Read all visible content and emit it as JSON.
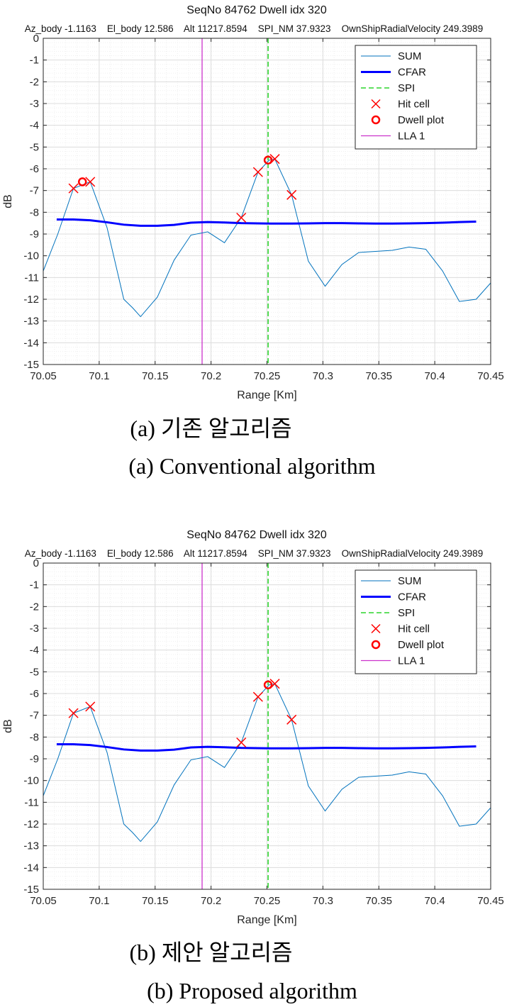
{
  "colors": {
    "sum": "#0072bd",
    "cfar": "#0000ff",
    "spi": "#00cc00",
    "marker": "#ff0000",
    "lla": "#cc33cc",
    "grid": "#e5e5e5",
    "axis": "#262626"
  },
  "chart_data": [
    {
      "type": "line",
      "title": "SeqNo 84762   Dwell idx 320",
      "subtitle": "Az_body -1.1163    El_body 12.586    Alt 11217.8594    SPI_NM 37.9323    OwnShipRadialVelocity 249.3989",
      "xlabel": "Range [Km]",
      "ylabel": "dB",
      "xlim": [
        70.05,
        70.45
      ],
      "ylim": [
        -15,
        0
      ],
      "xticks": [
        "70.05",
        "70.1",
        "70.15",
        "70.2",
        "70.25",
        "70.3",
        "70.35",
        "70.4",
        "70.45"
      ],
      "yticks": [
        "0",
        "-1",
        "-2",
        "-3",
        "-4",
        "-5",
        "-6",
        "-7",
        "-8",
        "-9",
        "-10",
        "-11",
        "-12",
        "-13",
        "-14",
        "-15"
      ],
      "grid": "on (major and minor)",
      "legend_position": "top-right",
      "legend": [
        "SUM",
        "CFAR",
        "SPI",
        "Hit cell",
        "Dwell plot",
        "LLA 1"
      ],
      "series": [
        {
          "name": "SUM",
          "style": "thin-line",
          "x": [
            70.05,
            70.063,
            70.077,
            70.092,
            70.107,
            70.122,
            70.13,
            70.137,
            70.152,
            70.167,
            70.182,
            70.197,
            70.212,
            70.227,
            70.242,
            70.252,
            70.257,
            70.272,
            70.287,
            70.302,
            70.317,
            70.332,
            70.347,
            70.362,
            70.377,
            70.392,
            70.407,
            70.422,
            70.437,
            70.45
          ],
          "y": [
            -10.7,
            -9.0,
            -6.9,
            -6.6,
            -8.7,
            -12.0,
            -12.4,
            -12.8,
            -11.9,
            -10.2,
            -9.05,
            -8.9,
            -9.4,
            -8.25,
            -6.15,
            -5.6,
            -5.55,
            -7.2,
            -10.25,
            -11.4,
            -10.4,
            -9.85,
            -9.8,
            -9.75,
            -9.6,
            -9.7,
            -10.7,
            -12.1,
            -12.0,
            -11.25
          ]
        },
        {
          "name": "CFAR",
          "style": "thick-line",
          "x": [
            70.062,
            70.077,
            70.092,
            70.107,
            70.122,
            70.137,
            70.152,
            70.167,
            70.182,
            70.197,
            70.212,
            70.227,
            70.242,
            70.257,
            70.272,
            70.287,
            70.302,
            70.317,
            70.332,
            70.347,
            70.362,
            70.377,
            70.392,
            70.407,
            70.422,
            70.437
          ],
          "y": [
            -8.33,
            -8.33,
            -8.37,
            -8.46,
            -8.57,
            -8.62,
            -8.62,
            -8.58,
            -8.48,
            -8.45,
            -8.47,
            -8.5,
            -8.51,
            -8.52,
            -8.52,
            -8.51,
            -8.5,
            -8.5,
            -8.51,
            -8.52,
            -8.52,
            -8.51,
            -8.5,
            -8.48,
            -8.45,
            -8.43
          ]
        },
        {
          "name": "SPI",
          "style": "dashed-vertical",
          "x": [
            70.251
          ]
        },
        {
          "name": "LLA 1",
          "style": "vertical",
          "x": [
            70.192
          ]
        },
        {
          "name": "Hit cell",
          "style": "x-marker",
          "x": [
            70.077,
            70.092,
            70.227,
            70.242,
            70.257,
            70.272
          ],
          "y": [
            -6.9,
            -6.6,
            -8.25,
            -6.15,
            -5.55,
            -7.2
          ]
        },
        {
          "name": "Dwell plot",
          "style": "circle-marker",
          "x": [
            70.085,
            70.251
          ],
          "y": [
            -6.6,
            -5.6
          ]
        }
      ]
    },
    {
      "type": "line",
      "title": "SeqNo 84762   Dwell idx 320",
      "subtitle": "Az_body -1.1163    El_body 12.586    Alt 11217.8594    SPI_NM 37.9323    OwnShipRadialVelocity 249.3989",
      "xlabel": "Range [Km]",
      "ylabel": "dB",
      "xlim": [
        70.05,
        70.45
      ],
      "ylim": [
        -15,
        0
      ],
      "xticks": [
        "70.05",
        "70.1",
        "70.15",
        "70.2",
        "70.25",
        "70.3",
        "70.35",
        "70.4",
        "70.45"
      ],
      "yticks": [
        "0",
        "-1",
        "-2",
        "-3",
        "-4",
        "-5",
        "-6",
        "-7",
        "-8",
        "-9",
        "-10",
        "-11",
        "-12",
        "-13",
        "-14",
        "-15"
      ],
      "grid": "on (major and minor)",
      "legend_position": "top-right",
      "legend": [
        "SUM",
        "CFAR",
        "SPI",
        "Hit cell",
        "Dwell plot",
        "LLA 1"
      ],
      "series": [
        {
          "name": "SUM",
          "style": "thin-line",
          "x": [
            70.05,
            70.063,
            70.077,
            70.092,
            70.107,
            70.122,
            70.13,
            70.137,
            70.152,
            70.167,
            70.182,
            70.197,
            70.212,
            70.227,
            70.242,
            70.252,
            70.257,
            70.272,
            70.287,
            70.302,
            70.317,
            70.332,
            70.347,
            70.362,
            70.377,
            70.392,
            70.407,
            70.422,
            70.437,
            70.45
          ],
          "y": [
            -10.7,
            -9.0,
            -6.9,
            -6.6,
            -8.7,
            -12.0,
            -12.4,
            -12.8,
            -11.9,
            -10.2,
            -9.05,
            -8.9,
            -9.4,
            -8.25,
            -6.15,
            -5.6,
            -5.55,
            -7.2,
            -10.25,
            -11.4,
            -10.4,
            -9.85,
            -9.8,
            -9.75,
            -9.6,
            -9.7,
            -10.7,
            -12.1,
            -12.0,
            -11.25
          ]
        },
        {
          "name": "CFAR",
          "style": "thick-line",
          "x": [
            70.062,
            70.077,
            70.092,
            70.107,
            70.122,
            70.137,
            70.152,
            70.167,
            70.182,
            70.197,
            70.212,
            70.227,
            70.242,
            70.257,
            70.272,
            70.287,
            70.302,
            70.317,
            70.332,
            70.347,
            70.362,
            70.377,
            70.392,
            70.407,
            70.422,
            70.437
          ],
          "y": [
            -8.33,
            -8.33,
            -8.37,
            -8.46,
            -8.57,
            -8.62,
            -8.62,
            -8.58,
            -8.48,
            -8.45,
            -8.47,
            -8.5,
            -8.51,
            -8.52,
            -8.52,
            -8.51,
            -8.5,
            -8.5,
            -8.51,
            -8.52,
            -8.52,
            -8.51,
            -8.5,
            -8.48,
            -8.45,
            -8.43
          ]
        },
        {
          "name": "SPI",
          "style": "dashed-vertical",
          "x": [
            70.251
          ]
        },
        {
          "name": "LLA 1",
          "style": "vertical",
          "x": [
            70.192
          ]
        },
        {
          "name": "Hit cell",
          "style": "x-marker",
          "x": [
            70.077,
            70.092,
            70.227,
            70.242,
            70.257,
            70.272
          ],
          "y": [
            -6.9,
            -6.6,
            -8.25,
            -6.15,
            -5.55,
            -7.2
          ]
        },
        {
          "name": "Dwell plot",
          "style": "circle-marker",
          "x": [
            70.251
          ],
          "y": [
            -5.6
          ]
        }
      ]
    }
  ],
  "captions": {
    "a_ko": "(a)  기존  알고리즘",
    "a_en": "(a)  Conventional  algorithm",
    "b_ko": "(b)  제안  알고리즘",
    "b_en": "(b)  Proposed  algorithm"
  }
}
